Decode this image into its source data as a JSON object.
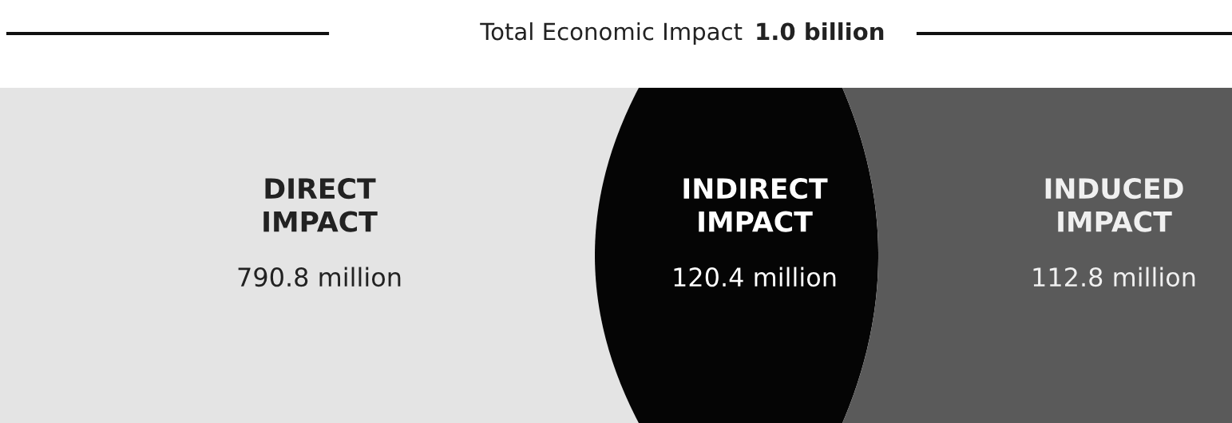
{
  "chart_data": {
    "type": "other",
    "title": "Total Economic Impact",
    "subtitle": "1.0 billion",
    "categories": [
      "DIRECT\nIMPACT",
      "INDIRECT\nIMPACT",
      "INDUCED\nIMPACT"
    ],
    "values": [
      790.8,
      120.4,
      112.8
    ],
    "value_labels": [
      "790.8 million",
      "120.4 million",
      "112.8 million"
    ],
    "colors": [
      "#e4e4e4",
      "#050505",
      "#5a5a5a"
    ]
  }
}
